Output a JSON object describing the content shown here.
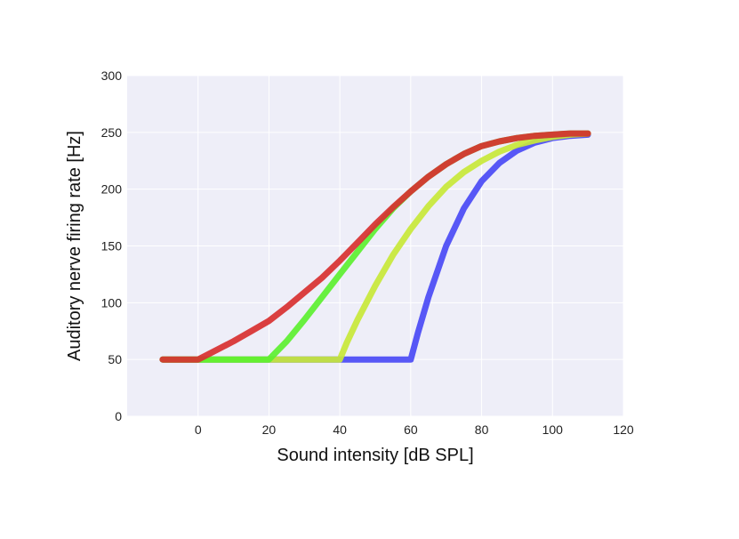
{
  "chart_data": {
    "type": "line",
    "title": "",
    "xlabel": "Sound intensity [dB SPL]",
    "ylabel": "Auditory nerve firing rate [Hz]",
    "xlim": [
      -20,
      120
    ],
    "ylim": [
      0,
      300
    ],
    "xticks": [
      0,
      20,
      40,
      60,
      80,
      100,
      120
    ],
    "yticks": [
      0,
      50,
      100,
      150,
      200,
      250,
      300
    ],
    "grid": true,
    "background_color": "#eeeef8",
    "series": [
      {
        "color": "#4a4af5",
        "x": [
          -10,
          0,
          20,
          40,
          60,
          62,
          65,
          70,
          75,
          80,
          85,
          90,
          95,
          100,
          105,
          110
        ],
        "y": [
          50,
          50,
          50,
          50,
          50,
          73,
          105,
          150,
          183,
          207,
          223,
          234,
          241,
          245,
          247,
          248
        ]
      },
      {
        "color": "#c8e838",
        "x": [
          -10,
          0,
          20,
          40,
          42,
          45,
          50,
          55,
          60,
          65,
          70,
          75,
          80,
          85,
          90,
          95,
          100,
          105,
          110
        ],
        "y": [
          50,
          50,
          50,
          50,
          65,
          85,
          115,
          142,
          165,
          185,
          202,
          215,
          225,
          233,
          239,
          243,
          246,
          248,
          249
        ]
      },
      {
        "color": "#5cf030",
        "x": [
          -10,
          0,
          20,
          25,
          30,
          35,
          40,
          45,
          50,
          55,
          60,
          65,
          70,
          75,
          80,
          85,
          90,
          95,
          100,
          105,
          110
        ],
        "y": [
          50,
          50,
          50,
          66,
          85,
          105,
          125,
          145,
          165,
          183,
          198,
          211,
          222,
          231,
          238,
          242,
          245,
          247,
          248,
          249,
          249
        ]
      },
      {
        "color": "#d83030",
        "x": [
          -10,
          0,
          5,
          10,
          15,
          20,
          25,
          30,
          35,
          40,
          45,
          50,
          55,
          60,
          65,
          70,
          75,
          80,
          85,
          90,
          95,
          100,
          105,
          110
        ],
        "y": [
          50,
          50,
          58,
          66,
          75,
          84,
          96,
          109,
          122,
          137,
          153,
          169,
          184,
          198,
          211,
          222,
          231,
          238,
          242,
          245,
          247,
          248,
          249,
          249
        ]
      }
    ]
  }
}
